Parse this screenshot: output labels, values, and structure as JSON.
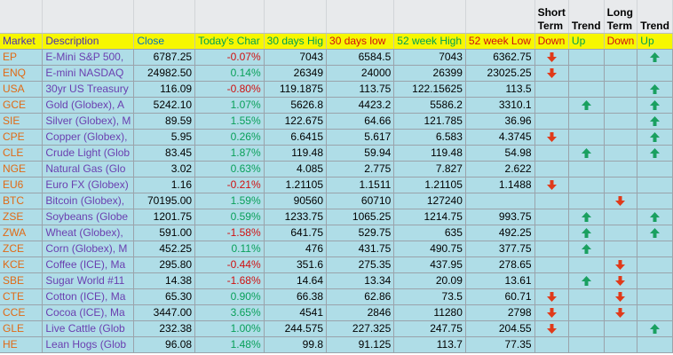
{
  "header_top": {
    "short_term": "Short Term",
    "trend1": "Trend",
    "long_term": "Long Term",
    "trend2": "Trend"
  },
  "columns": {
    "market": "Market",
    "description": "Description",
    "close": "Close",
    "todays_change": "Today's Char",
    "d30_high": "30 days Hig",
    "d30_low": "30 days low",
    "w52_high": "52 week High",
    "w52_low": "52 week Low",
    "st_down": "Down",
    "st_up": "Up",
    "lt_down": "Down",
    "lt_up": "Up"
  },
  "colors": {
    "header_bg": "#f7f700",
    "row_bg": "#afdde7",
    "symbol": "#e06a16",
    "description": "#6a3fb0",
    "positive": "#0aa05a",
    "negative": "#d01010",
    "arrow_up": "#1aa060",
    "arrow_down": "#e03a1a"
  },
  "rows": [
    {
      "sym": "EP",
      "desc": "E-Mini S&P 500,",
      "close": "6787.25",
      "chg": "-0.07%",
      "dir": "dn",
      "hi30": "7043",
      "lo30": "6584.5",
      "hi52": "7043",
      "lo52": "6362.75",
      "st_down": true,
      "st_up": false,
      "lt_down": false,
      "lt_up": true
    },
    {
      "sym": "ENQ",
      "desc": "E-mini NASDAQ",
      "close": "24982.50",
      "chg": "0.14%",
      "dir": "up",
      "hi30": "26349",
      "lo30": "24000",
      "hi52": "26399",
      "lo52": "23025.25",
      "st_down": true,
      "st_up": false,
      "lt_down": false,
      "lt_up": false
    },
    {
      "sym": "USA",
      "desc": "30yr US Treasury",
      "close": "116.09",
      "chg": "-0.80%",
      "dir": "dn",
      "hi30": "119.1875",
      "lo30": "113.75",
      "hi52": "122.15625",
      "lo52": "113.5",
      "st_down": false,
      "st_up": false,
      "lt_down": false,
      "lt_up": true
    },
    {
      "sym": "GCE",
      "desc": "Gold (Globex), A",
      "close": "5242.10",
      "chg": "1.07%",
      "dir": "up",
      "hi30": "5626.8",
      "lo30": "4423.2",
      "hi52": "5586.2",
      "lo52": "3310.1",
      "st_down": false,
      "st_up": true,
      "lt_down": false,
      "lt_up": true
    },
    {
      "sym": "SIE",
      "desc": "Silver (Globex), M",
      "close": "89.59",
      "chg": "1.55%",
      "dir": "up",
      "hi30": "122.675",
      "lo30": "64.66",
      "hi52": "121.785",
      "lo52": "36.96",
      "st_down": false,
      "st_up": false,
      "lt_down": false,
      "lt_up": true
    },
    {
      "sym": "CPE",
      "desc": "Copper (Globex),",
      "close": "5.95",
      "chg": "0.26%",
      "dir": "up",
      "hi30": "6.6415",
      "lo30": "5.617",
      "hi52": "6.583",
      "lo52": "4.3745",
      "st_down": true,
      "st_up": false,
      "lt_down": false,
      "lt_up": true
    },
    {
      "sym": "CLE",
      "desc": "Crude Light (Glob",
      "close": "83.45",
      "chg": "1.87%",
      "dir": "up",
      "hi30": "119.48",
      "lo30": "59.94",
      "hi52": "119.48",
      "lo52": "54.98",
      "st_down": false,
      "st_up": true,
      "lt_down": false,
      "lt_up": true
    },
    {
      "sym": "NGE",
      "desc": "Natural Gas (Glo",
      "close": "3.02",
      "chg": "0.63%",
      "dir": "up",
      "hi30": "4.085",
      "lo30": "2.775",
      "hi52": "7.827",
      "lo52": "2.622",
      "st_down": false,
      "st_up": false,
      "lt_down": false,
      "lt_up": false
    },
    {
      "sym": "EU6",
      "desc": "Euro FX (Globex)",
      "close": "1.16",
      "chg": "-0.21%",
      "dir": "dn",
      "hi30": "1.21105",
      "lo30": "1.1511",
      "hi52": "1.21105",
      "lo52": "1.1488",
      "st_down": true,
      "st_up": false,
      "lt_down": false,
      "lt_up": false
    },
    {
      "sym": "BTC",
      "desc": "Bitcoin (Globex),",
      "close": "70195.00",
      "chg": "1.59%",
      "dir": "up",
      "hi30": "90560",
      "lo30": "60710",
      "hi52": "127240",
      "lo52": "",
      "st_down": false,
      "st_up": false,
      "lt_down": true,
      "lt_up": false
    },
    {
      "sym": "ZSE",
      "desc": "Soybeans (Globe",
      "close": "1201.75",
      "chg": "0.59%",
      "dir": "up",
      "hi30": "1233.75",
      "lo30": "1065.25",
      "hi52": "1214.75",
      "lo52": "993.75",
      "st_down": false,
      "st_up": true,
      "lt_down": false,
      "lt_up": true
    },
    {
      "sym": "ZWA",
      "desc": "Wheat (Globex),",
      "close": "591.00",
      "chg": "-1.58%",
      "dir": "dn",
      "hi30": "641.75",
      "lo30": "529.75",
      "hi52": "635",
      "lo52": "492.25",
      "st_down": false,
      "st_up": true,
      "lt_down": false,
      "lt_up": true
    },
    {
      "sym": "ZCE",
      "desc": "Corn (Globex), M",
      "close": "452.25",
      "chg": "0.11%",
      "dir": "up",
      "hi30": "476",
      "lo30": "431.75",
      "hi52": "490.75",
      "lo52": "377.75",
      "st_down": false,
      "st_up": true,
      "lt_down": false,
      "lt_up": false
    },
    {
      "sym": "KCE",
      "desc": "Coffee (ICE), Ma",
      "close": "295.80",
      "chg": "-0.44%",
      "dir": "dn",
      "hi30": "351.6",
      "lo30": "275.35",
      "hi52": "437.95",
      "lo52": "278.65",
      "st_down": false,
      "st_up": false,
      "lt_down": true,
      "lt_up": false
    },
    {
      "sym": "SBE",
      "desc": "Sugar World #11",
      "close": "14.38",
      "chg": "-1.68%",
      "dir": "dn",
      "hi30": "14.64",
      "lo30": "13.34",
      "hi52": "20.09",
      "lo52": "13.61",
      "st_down": false,
      "st_up": true,
      "lt_down": true,
      "lt_up": false
    },
    {
      "sym": "CTE",
      "desc": "Cotton (ICE), Ma",
      "close": "65.30",
      "chg": "0.90%",
      "dir": "up",
      "hi30": "66.38",
      "lo30": "62.86",
      "hi52": "73.5",
      "lo52": "60.71",
      "st_down": true,
      "st_up": false,
      "lt_down": true,
      "lt_up": false
    },
    {
      "sym": "CCE",
      "desc": "Cocoa (ICE), Ma",
      "close": "3447.00",
      "chg": "3.65%",
      "dir": "up",
      "hi30": "4541",
      "lo30": "2846",
      "hi52": "11280",
      "lo52": "2798",
      "st_down": true,
      "st_up": false,
      "lt_down": true,
      "lt_up": false
    },
    {
      "sym": "GLE",
      "desc": "Live Cattle (Glob",
      "close": "232.38",
      "chg": "1.00%",
      "dir": "up",
      "hi30": "244.575",
      "lo30": "227.325",
      "hi52": "247.75",
      "lo52": "204.55",
      "st_down": true,
      "st_up": false,
      "lt_down": false,
      "lt_up": true
    },
    {
      "sym": "HE",
      "desc": "Lean Hogs (Glob",
      "close": "96.08",
      "chg": "1.48%",
      "dir": "up",
      "hi30": "99.8",
      "lo30": "91.125",
      "hi52": "113.7",
      "lo52": "77.35",
      "st_down": false,
      "st_up": false,
      "lt_down": false,
      "lt_up": false
    }
  ]
}
